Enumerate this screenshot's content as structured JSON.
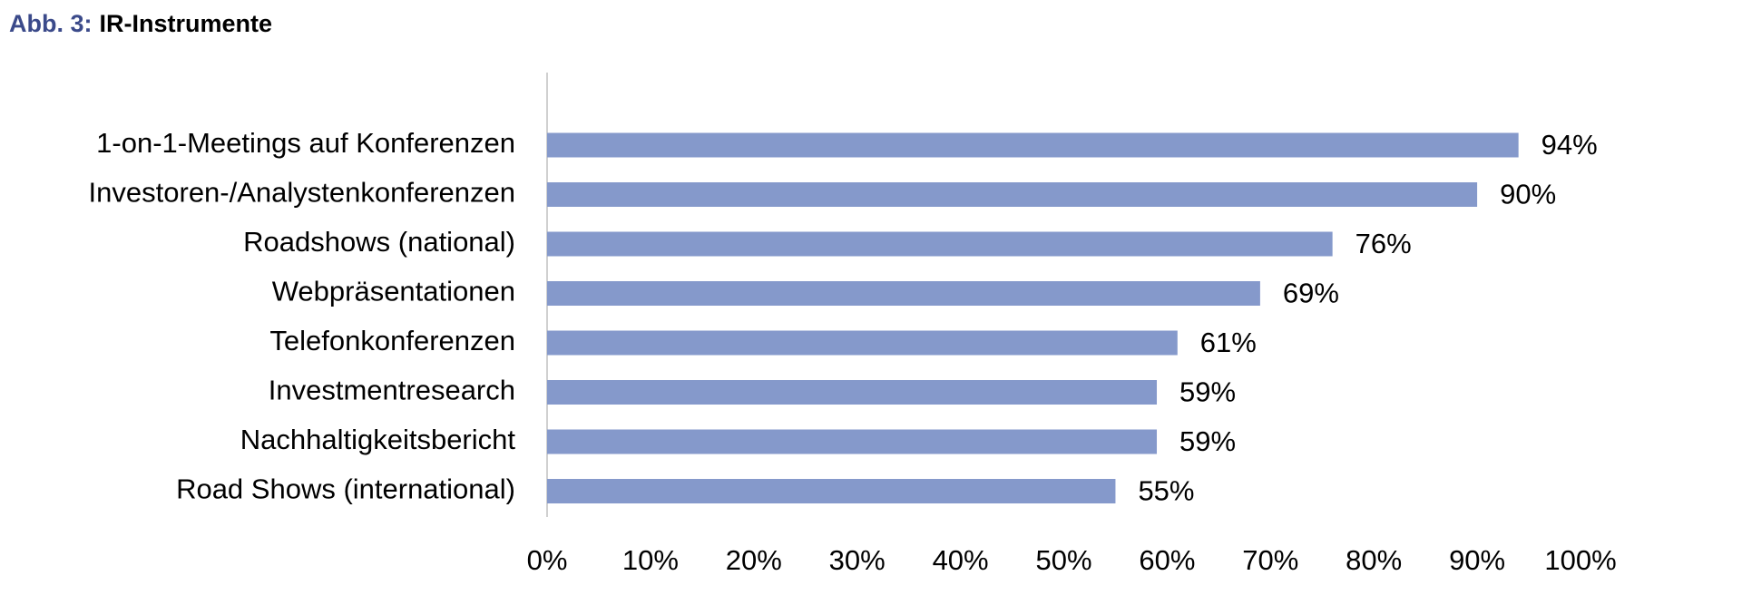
{
  "chart_data": {
    "type": "hbar",
    "figure_label": "Abb. 3:",
    "title": "IR-Instrumente",
    "categories": [
      "1-on-1-Meetings auf Konferenzen",
      "Investoren-/Analystenkonferenzen",
      "Roadshows (national)",
      "Webpräsentationen",
      "Telefonkonferenzen",
      "Investmentresearch",
      "Nachhaltigkeitsbericht",
      "Road Shows (international)"
    ],
    "values": [
      94,
      90,
      76,
      69,
      61,
      59,
      59,
      55
    ],
    "value_labels": [
      "94%",
      "90%",
      "76%",
      "69%",
      "61%",
      "59%",
      "59%",
      "55%"
    ],
    "color": "#8599cb",
    "xlim": [
      0,
      100
    ],
    "xticks": [
      {
        "value": 0,
        "label": "0%"
      },
      {
        "value": 10,
        "label": "10%"
      },
      {
        "value": 20,
        "label": "20%"
      },
      {
        "value": 30,
        "label": "30%"
      },
      {
        "value": 40,
        "label": "40%"
      },
      {
        "value": 50,
        "label": "50%"
      },
      {
        "value": 60,
        "label": "60%"
      },
      {
        "value": 70,
        "label": "70%"
      },
      {
        "value": 80,
        "label": "80%"
      },
      {
        "value": 90,
        "label": "90%"
      },
      {
        "value": 100,
        "label": "100%"
      }
    ],
    "grid": false
  }
}
